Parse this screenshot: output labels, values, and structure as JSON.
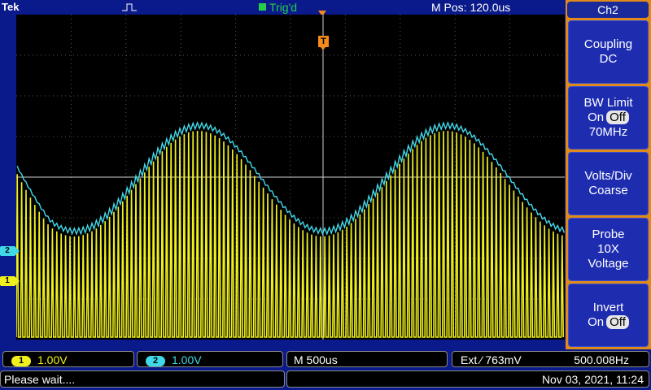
{
  "header": {
    "brand": "Tek",
    "trigger_status": "Trig'd",
    "m_pos": "M Pos: 120.0us"
  },
  "screen": {
    "trigger_marker": "T",
    "ch2_marker": "2",
    "ch1_marker": "1"
  },
  "menu": {
    "title": "Ch2",
    "coupling": {
      "label": "Coupling",
      "value": "DC"
    },
    "bw_limit": {
      "label": "BW Limit",
      "on": "On",
      "off": "Off",
      "value": "70MHz"
    },
    "volts_div": {
      "label": "Volts/Div",
      "value": "Coarse"
    },
    "probe": {
      "label": "Probe",
      "ratio": "10X",
      "type": "Voltage"
    },
    "invert": {
      "label": "Invert",
      "on": "On",
      "off": "Off"
    }
  },
  "bottom": {
    "ch1_num": "1",
    "ch1_scale": "1.00V",
    "ch2_num": "2",
    "ch2_scale": "1.00V",
    "timebase": "M 500us",
    "trigger": "Ext ⁄ 763mV",
    "frequency": "500.008Hz"
  },
  "status": {
    "message": "Please wait....",
    "datetime": "Nov 03, 2021, 11:24"
  },
  "colors": {
    "ch1": "#f0f01e",
    "ch2": "#41d9e8",
    "trigger": "#f28a1c",
    "menu": "#e08a1a"
  }
}
